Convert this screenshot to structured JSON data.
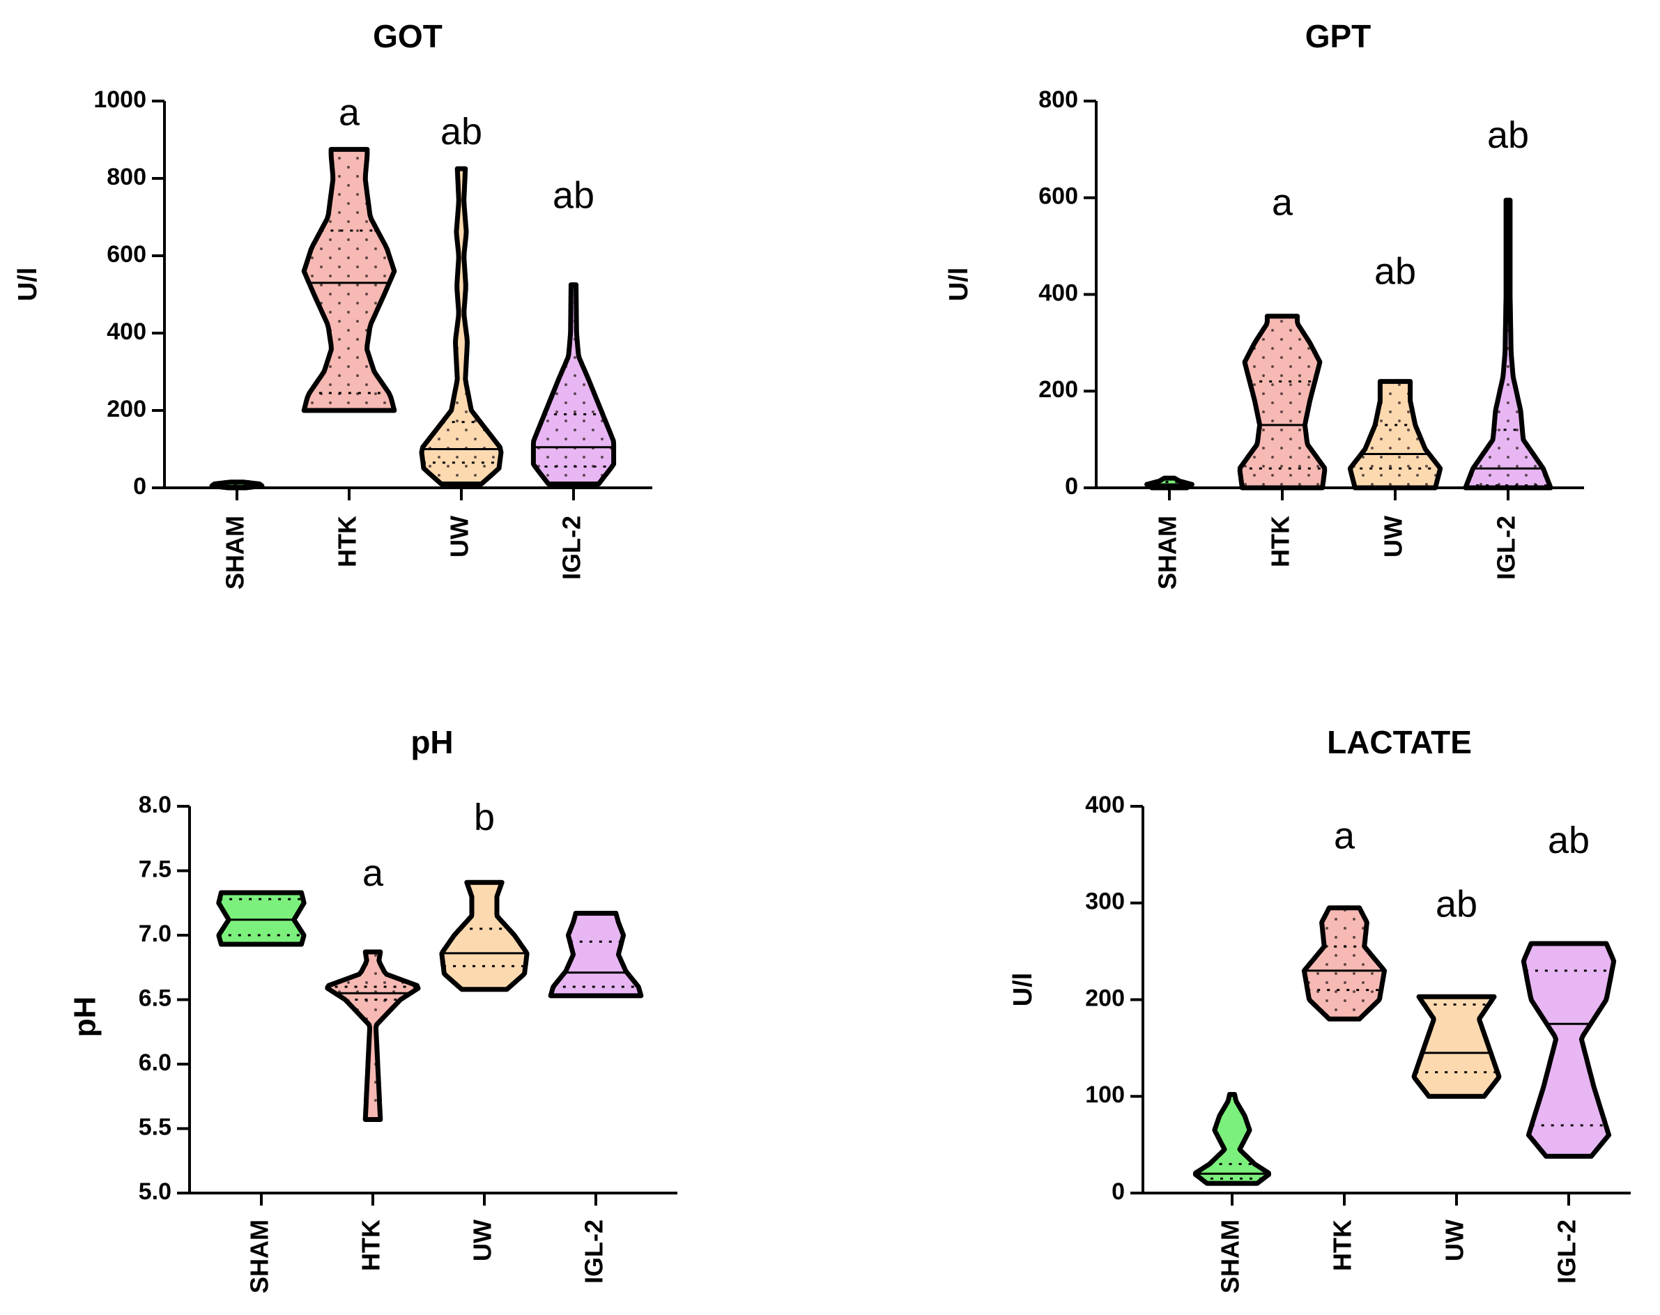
{
  "colors": {
    "SHAM": "#7cf07c",
    "HTK": "#f7b9b3",
    "UW": "#fdd9b0",
    "IGL-2": "#e8b6f3",
    "outline": "#000000"
  },
  "chart_data": [
    {
      "type": "violin",
      "title": "GOT",
      "ylabel": "U/l",
      "ylim": [
        0,
        1000
      ],
      "yticks": [
        0,
        200,
        400,
        600,
        800,
        1000
      ],
      "tick_decimals": 0,
      "categories": [
        "SHAM",
        "HTK",
        "UW",
        "IGL-2"
      ],
      "dotted_fill": [
        false,
        true,
        true,
        true
      ],
      "groups": [
        {
          "name": "SHAM",
          "min": 0,
          "max": 15,
          "median": 5,
          "q1": 2,
          "q3": 10,
          "profile": [
            [
              0,
              0.18
            ],
            [
              5,
              0.5
            ],
            [
              10,
              0.45
            ],
            [
              15,
              0.12
            ]
          ],
          "letters": ""
        },
        {
          "name": "HTK",
          "min": 200,
          "max": 875,
          "median": 530,
          "q1": 245,
          "q3": 665,
          "profile": [
            [
              200,
              0.9
            ],
            [
              240,
              0.82
            ],
            [
              300,
              0.5
            ],
            [
              360,
              0.35
            ],
            [
              420,
              0.42
            ],
            [
              500,
              0.7
            ],
            [
              560,
              0.9
            ],
            [
              620,
              0.75
            ],
            [
              700,
              0.42
            ],
            [
              800,
              0.32
            ],
            [
              860,
              0.36
            ],
            [
              875,
              0.36
            ]
          ],
          "letters": "a"
        },
        {
          "name": "UW",
          "min": 10,
          "max": 825,
          "median": 100,
          "q1": 65,
          "q3": 170,
          "profile": [
            [
              10,
              0.4
            ],
            [
              50,
              0.75
            ],
            [
              100,
              0.8
            ],
            [
              150,
              0.5
            ],
            [
              200,
              0.2
            ],
            [
              280,
              0.08
            ],
            [
              380,
              0.12
            ],
            [
              450,
              0.05
            ],
            [
              520,
              0.09
            ],
            [
              600,
              0.05
            ],
            [
              660,
              0.1
            ],
            [
              740,
              0.05
            ],
            [
              825,
              0.08
            ]
          ],
          "letters": "ab"
        },
        {
          "name": "IGL-2",
          "min": 10,
          "max": 525,
          "median": 105,
          "q1": 55,
          "q3": 190,
          "profile": [
            [
              10,
              0.5
            ],
            [
              60,
              0.8
            ],
            [
              120,
              0.8
            ],
            [
              200,
              0.55
            ],
            [
              280,
              0.3
            ],
            [
              340,
              0.1
            ],
            [
              400,
              0.06
            ],
            [
              525,
              0.05
            ]
          ],
          "letters": "ab"
        }
      ]
    },
    {
      "type": "violin",
      "title": "GPT",
      "ylabel": "U/l",
      "ylim": [
        0,
        800
      ],
      "yticks": [
        0,
        200,
        400,
        600,
        800
      ],
      "tick_decimals": 0,
      "categories": [
        "SHAM",
        "HTK",
        "UW",
        "IGL-2"
      ],
      "dotted_fill": [
        false,
        true,
        true,
        true
      ],
      "groups": [
        {
          "name": "SHAM",
          "min": 0,
          "max": 20,
          "median": 7,
          "q1": 3,
          "q3": 12,
          "profile": [
            [
              0,
              0.35
            ],
            [
              7,
              0.45
            ],
            [
              14,
              0.2
            ],
            [
              20,
              0.1
            ]
          ],
          "letters": ""
        },
        {
          "name": "HTK",
          "min": 0,
          "max": 355,
          "median": 130,
          "q1": 40,
          "q3": 220,
          "profile": [
            [
              0,
              0.8
            ],
            [
              40,
              0.85
            ],
            [
              90,
              0.5
            ],
            [
              130,
              0.45
            ],
            [
              180,
              0.55
            ],
            [
              260,
              0.75
            ],
            [
              300,
              0.55
            ],
            [
              340,
              0.3
            ],
            [
              355,
              0.3
            ]
          ],
          "letters": "a"
        },
        {
          "name": "UW",
          "min": 0,
          "max": 220,
          "median": 70,
          "q1": 40,
          "q3": 130,
          "profile": [
            [
              0,
              0.8
            ],
            [
              40,
              0.9
            ],
            [
              80,
              0.6
            ],
            [
              130,
              0.4
            ],
            [
              180,
              0.3
            ],
            [
              220,
              0.3
            ]
          ],
          "letters": "ab"
        },
        {
          "name": "IGL-2",
          "min": 0,
          "max": 595,
          "median": 40,
          "q1": 5,
          "q3": 120,
          "profile": [
            [
              0,
              0.85
            ],
            [
              40,
              0.7
            ],
            [
              100,
              0.3
            ],
            [
              160,
              0.25
            ],
            [
              230,
              0.1
            ],
            [
              280,
              0.06
            ],
            [
              400,
              0.04
            ],
            [
              595,
              0.04
            ]
          ],
          "letters": "ab"
        }
      ]
    },
    {
      "type": "violin",
      "title": "pH",
      "ylabel": "pH",
      "ylim": [
        5.0,
        8.0
      ],
      "yticks": [
        5.0,
        5.5,
        6.0,
        6.5,
        7.0,
        7.5,
        8.0
      ],
      "tick_decimals": 1,
      "categories": [
        "SHAM",
        "HTK",
        "UW",
        "IGL-2"
      ],
      "dotted_fill": [
        false,
        true,
        false,
        false
      ],
      "groups": [
        {
          "name": "SHAM",
          "min": 6.93,
          "max": 7.33,
          "median": 7.12,
          "q1": 7.0,
          "q3": 7.28,
          "profile": [
            [
              6.93,
              0.8
            ],
            [
              7.0,
              0.85
            ],
            [
              7.12,
              0.65
            ],
            [
              7.25,
              0.85
            ],
            [
              7.33,
              0.8
            ]
          ],
          "letters": ""
        },
        {
          "name": "HTK",
          "min": 5.57,
          "max": 6.87,
          "median": 6.55,
          "q1": 6.5,
          "q3": 6.6,
          "profile": [
            [
              5.57,
              0.15
            ],
            [
              6.3,
              0.06
            ],
            [
              6.5,
              0.55
            ],
            [
              6.6,
              0.95
            ],
            [
              6.7,
              0.25
            ],
            [
              6.8,
              0.12
            ],
            [
              6.87,
              0.15
            ]
          ],
          "letters": "a"
        },
        {
          "name": "UW",
          "min": 6.58,
          "max": 7.41,
          "median": 6.86,
          "q1": 6.76,
          "q3": 7.05,
          "profile": [
            [
              6.58,
              0.45
            ],
            [
              6.7,
              0.8
            ],
            [
              6.86,
              0.85
            ],
            [
              7.0,
              0.6
            ],
            [
              7.15,
              0.25
            ],
            [
              7.3,
              0.25
            ],
            [
              7.41,
              0.35
            ]
          ],
          "letters": "b"
        },
        {
          "name": "IGL-2",
          "min": 6.53,
          "max": 7.17,
          "median": 6.71,
          "q1": 6.6,
          "q3": 6.95,
          "profile": [
            [
              6.53,
              0.9
            ],
            [
              6.6,
              0.85
            ],
            [
              6.72,
              0.6
            ],
            [
              6.85,
              0.45
            ],
            [
              7.0,
              0.55
            ],
            [
              7.1,
              0.45
            ],
            [
              7.17,
              0.4
            ]
          ],
          "letters": ""
        }
      ]
    },
    {
      "type": "violin",
      "title": "LACTATE",
      "ylabel": "U/l",
      "ylim": [
        0,
        400
      ],
      "yticks": [
        0,
        100,
        200,
        300,
        400
      ],
      "tick_decimals": 0,
      "categories": [
        "SHAM",
        "HTK",
        "UW",
        "IGL-2"
      ],
      "dotted_fill": [
        false,
        true,
        false,
        false
      ],
      "groups": [
        {
          "name": "SHAM",
          "min": 10,
          "max": 102,
          "median": 20,
          "q1": 15,
          "q3": 30,
          "profile": [
            [
              10,
              0.5
            ],
            [
              20,
              0.75
            ],
            [
              30,
              0.45
            ],
            [
              45,
              0.15
            ],
            [
              65,
              0.35
            ],
            [
              80,
              0.25
            ],
            [
              95,
              0.08
            ],
            [
              102,
              0.05
            ]
          ],
          "letters": ""
        },
        {
          "name": "HTK",
          "min": 180,
          "max": 295,
          "median": 230,
          "q1": 210,
          "q3": 255,
          "profile": [
            [
              180,
              0.3
            ],
            [
              200,
              0.7
            ],
            [
              230,
              0.8
            ],
            [
              255,
              0.4
            ],
            [
              280,
              0.45
            ],
            [
              295,
              0.3
            ]
          ],
          "letters": "a"
        },
        {
          "name": "UW",
          "min": 100,
          "max": 203,
          "median": 145,
          "q1": 125,
          "q3": 195,
          "profile": [
            [
              100,
              0.55
            ],
            [
              120,
              0.85
            ],
            [
              150,
              0.65
            ],
            [
              180,
              0.45
            ],
            [
              203,
              0.75
            ]
          ],
          "letters": "ab"
        },
        {
          "name": "IGL-2",
          "min": 38,
          "max": 258,
          "median": 175,
          "q1": 70,
          "q3": 230,
          "profile": [
            [
              38,
              0.45
            ],
            [
              60,
              0.8
            ],
            [
              110,
              0.5
            ],
            [
              160,
              0.25
            ],
            [
              200,
              0.75
            ],
            [
              240,
              0.9
            ],
            [
              258,
              0.75
            ]
          ],
          "letters": "ab"
        }
      ]
    }
  ]
}
